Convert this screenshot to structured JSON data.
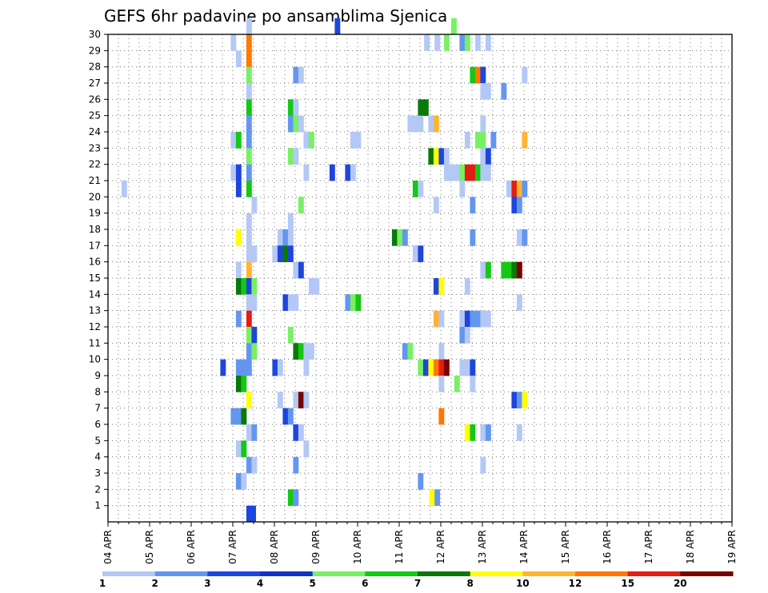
{
  "chart_data": {
    "type": "heatmap",
    "title": "GEFS 6hr padavine po ansamblima Sjenica",
    "x_ticks": [
      "04 APR",
      "05 APR",
      "06 APR",
      "07 APR",
      "08 APR",
      "09 APR",
      "10 APR",
      "11 APR",
      "12 APR",
      "13 APR",
      "14 APR",
      "15 APR",
      "16 APR",
      "17 APR",
      "18 APR",
      "19 APR"
    ],
    "y_ticks": [
      "1",
      "2",
      "3",
      "4",
      "5",
      "6",
      "7",
      "8",
      "9",
      "10",
      "11",
      "12",
      "13",
      "14",
      "15",
      "16",
      "17",
      "18",
      "19",
      "20",
      "21",
      "22",
      "23",
      "24",
      "25",
      "26",
      "27",
      "28",
      "29",
      "30"
    ],
    "x_range": [
      0,
      60
    ],
    "y_range": [
      0,
      30
    ],
    "grid": true,
    "legend": "bottom",
    "levels": [
      "1",
      "2",
      "3",
      "4",
      "5",
      "6",
      "7",
      "8",
      "10",
      "12",
      "15",
      "20"
    ],
    "level_colors": [
      "#b4c8f5",
      "#6496f0",
      "#1e46dc",
      "#1432c8",
      "#78f064",
      "#14c814",
      "#0a780a",
      "#ffff00",
      "#ffb432",
      "#ff7800",
      "#e11e14",
      "#780000"
    ],
    "cells": [
      [
        13.3,
        30,
        1
      ],
      [
        13.3,
        0,
        3
      ],
      [
        13.7,
        0,
        3
      ],
      [
        21.8,
        30,
        3
      ],
      [
        33,
        30,
        5
      ],
      [
        11.8,
        29,
        1
      ],
      [
        13.3,
        29,
        10
      ],
      [
        30.4,
        29,
        1
      ],
      [
        31.4,
        29,
        1
      ],
      [
        32.3,
        29,
        5
      ],
      [
        33.8,
        29,
        2
      ],
      [
        34.3,
        29,
        5
      ],
      [
        35.3,
        29,
        1
      ],
      [
        36.3,
        29,
        1
      ],
      [
        12.3,
        28,
        1
      ],
      [
        13.3,
        28,
        10
      ],
      [
        13.3,
        27,
        5
      ],
      [
        17.8,
        27,
        2
      ],
      [
        18.3,
        27,
        1
      ],
      [
        34.8,
        27,
        6
      ],
      [
        35.3,
        27,
        10
      ],
      [
        35.8,
        27,
        3
      ],
      [
        39.8,
        27,
        1
      ],
      [
        13.3,
        26,
        1
      ],
      [
        35.8,
        26,
        1
      ],
      [
        36.3,
        26,
        1
      ],
      [
        37.8,
        26,
        2
      ],
      [
        13.3,
        25,
        6
      ],
      [
        17.3,
        25,
        6
      ],
      [
        17.8,
        25,
        1
      ],
      [
        29.8,
        25,
        7
      ],
      [
        30.3,
        25,
        7
      ],
      [
        13.3,
        24,
        2
      ],
      [
        17.3,
        24,
        2
      ],
      [
        17.8,
        24,
        5
      ],
      [
        18.3,
        24,
        1
      ],
      [
        28.8,
        24,
        1
      ],
      [
        29.3,
        24,
        1
      ],
      [
        29.8,
        24,
        1
      ],
      [
        30.8,
        24,
        1
      ],
      [
        31.3,
        24,
        9
      ],
      [
        35.8,
        24,
        1
      ],
      [
        11.8,
        23,
        1
      ],
      [
        12.3,
        23,
        6
      ],
      [
        13.3,
        23,
        2
      ],
      [
        18.8,
        23,
        1
      ],
      [
        19.3,
        23,
        5
      ],
      [
        23.3,
        23,
        1
      ],
      [
        23.8,
        23,
        1
      ],
      [
        34.3,
        23,
        1
      ],
      [
        35.3,
        23,
        5
      ],
      [
        35.8,
        23,
        5
      ],
      [
        36.8,
        23,
        2
      ],
      [
        39.8,
        23,
        9
      ],
      [
        13.3,
        22,
        5
      ],
      [
        17.3,
        22,
        5
      ],
      [
        17.8,
        22,
        1
      ],
      [
        30.8,
        22,
        7
      ],
      [
        31.3,
        22,
        8
      ],
      [
        31.8,
        22,
        3
      ],
      [
        32.3,
        22,
        1
      ],
      [
        35.8,
        22,
        1
      ],
      [
        36.3,
        22,
        3
      ],
      [
        11.8,
        21,
        1
      ],
      [
        12.3,
        21,
        3
      ],
      [
        13.3,
        21,
        2
      ],
      [
        18.8,
        21,
        1
      ],
      [
        21.3,
        21,
        3
      ],
      [
        22.8,
        21,
        3
      ],
      [
        23.3,
        21,
        1
      ],
      [
        32.3,
        21,
        1
      ],
      [
        32.8,
        21,
        1
      ],
      [
        33.3,
        21,
        1
      ],
      [
        33.8,
        21,
        5
      ],
      [
        34.3,
        21,
        11
      ],
      [
        34.8,
        21,
        11
      ],
      [
        35.3,
        21,
        6
      ],
      [
        35.8,
        21,
        1
      ],
      [
        36.3,
        21,
        1
      ],
      [
        1.3,
        20,
        1
      ],
      [
        12.3,
        20,
        3
      ],
      [
        13.3,
        20,
        6
      ],
      [
        29.3,
        20,
        6
      ],
      [
        29.8,
        20,
        1
      ],
      [
        33.8,
        20,
        1
      ],
      [
        38.3,
        20,
        1
      ],
      [
        38.8,
        20,
        11
      ],
      [
        39.3,
        20,
        9
      ],
      [
        39.8,
        20,
        2
      ],
      [
        13.8,
        19,
        1
      ],
      [
        18.3,
        19,
        5
      ],
      [
        31.3,
        19,
        1
      ],
      [
        34.8,
        19,
        2
      ],
      [
        38.8,
        19,
        3
      ],
      [
        39.3,
        19,
        2
      ],
      [
        13.3,
        18,
        1
      ],
      [
        17.3,
        18,
        1
      ],
      [
        12.3,
        17,
        8
      ],
      [
        13.3,
        17,
        1
      ],
      [
        16.3,
        17,
        1
      ],
      [
        16.8,
        17,
        2
      ],
      [
        17.3,
        17,
        1
      ],
      [
        27.3,
        17,
        7
      ],
      [
        27.8,
        17,
        5
      ],
      [
        28.3,
        17,
        2
      ],
      [
        34.8,
        17,
        2
      ],
      [
        39.3,
        17,
        1
      ],
      [
        39.8,
        17,
        2
      ],
      [
        13.3,
        16,
        1
      ],
      [
        13.8,
        16,
        1
      ],
      [
        15.8,
        16,
        1
      ],
      [
        16.3,
        16,
        3
      ],
      [
        16.8,
        16,
        7
      ],
      [
        17.3,
        16,
        3
      ],
      [
        29.3,
        16,
        1
      ],
      [
        29.8,
        16,
        3
      ],
      [
        12.3,
        15,
        1
      ],
      [
        13.3,
        15,
        9
      ],
      [
        17.8,
        15,
        1
      ],
      [
        18.3,
        15,
        3
      ],
      [
        35.8,
        15,
        1
      ],
      [
        36.3,
        15,
        6
      ],
      [
        37.8,
        15,
        6
      ],
      [
        38.3,
        15,
        6
      ],
      [
        38.8,
        15,
        7
      ],
      [
        39.3,
        15,
        12
      ],
      [
        12.3,
        14,
        7
      ],
      [
        12.8,
        14,
        6
      ],
      [
        13.3,
        14,
        3
      ],
      [
        13.8,
        14,
        5
      ],
      [
        19.3,
        14,
        1
      ],
      [
        19.8,
        14,
        1
      ],
      [
        31.3,
        14,
        3
      ],
      [
        31.8,
        14,
        8
      ],
      [
        34.3,
        14,
        1
      ],
      [
        13.3,
        13,
        1
      ],
      [
        13.8,
        13,
        1
      ],
      [
        16.8,
        13,
        3
      ],
      [
        17.3,
        13,
        1
      ],
      [
        17.8,
        13,
        1
      ],
      [
        22.8,
        13,
        2
      ],
      [
        23.3,
        13,
        5
      ],
      [
        23.8,
        13,
        6
      ],
      [
        39.3,
        13,
        1
      ],
      [
        12.3,
        12,
        2
      ],
      [
        13.3,
        12,
        11
      ],
      [
        31.3,
        12,
        9
      ],
      [
        31.8,
        12,
        1
      ],
      [
        33.8,
        12,
        1
      ],
      [
        34.3,
        12,
        3
      ],
      [
        34.8,
        12,
        2
      ],
      [
        35.3,
        12,
        2
      ],
      [
        35.8,
        12,
        1
      ],
      [
        36.3,
        12,
        1
      ],
      [
        13.3,
        11,
        5
      ],
      [
        13.8,
        11,
        3
      ],
      [
        17.3,
        11,
        5
      ],
      [
        33.8,
        11,
        2
      ],
      [
        34.3,
        11,
        1
      ],
      [
        13.3,
        10,
        2
      ],
      [
        13.8,
        10,
        5
      ],
      [
        17.8,
        10,
        7
      ],
      [
        18.3,
        10,
        6
      ],
      [
        18.8,
        10,
        1
      ],
      [
        19.3,
        10,
        1
      ],
      [
        28.3,
        10,
        2
      ],
      [
        28.8,
        10,
        5
      ],
      [
        31.8,
        10,
        1
      ],
      [
        10.8,
        9,
        3
      ],
      [
        12.3,
        9,
        2
      ],
      [
        12.8,
        9,
        2
      ],
      [
        13.3,
        9,
        2
      ],
      [
        15.8,
        9,
        3
      ],
      [
        16.3,
        9,
        1
      ],
      [
        18.8,
        9,
        1
      ],
      [
        29.8,
        9,
        5
      ],
      [
        30.3,
        9,
        3
      ],
      [
        30.8,
        9,
        8
      ],
      [
        31.3,
        9,
        10
      ],
      [
        31.8,
        9,
        11
      ],
      [
        32.3,
        9,
        12
      ],
      [
        33.8,
        9,
        1
      ],
      [
        34.3,
        9,
        1
      ],
      [
        34.8,
        9,
        3
      ],
      [
        12.3,
        8,
        7
      ],
      [
        12.8,
        8,
        6
      ],
      [
        31.8,
        8,
        1
      ],
      [
        33.3,
        8,
        5
      ],
      [
        34.8,
        8,
        1
      ],
      [
        13.3,
        7,
        8
      ],
      [
        16.3,
        7,
        1
      ],
      [
        17.8,
        7,
        1
      ],
      [
        18.3,
        7,
        12
      ],
      [
        18.8,
        7,
        1
      ],
      [
        38.8,
        7,
        3
      ],
      [
        39.3,
        7,
        2
      ],
      [
        39.8,
        7,
        8
      ],
      [
        11.8,
        6,
        2
      ],
      [
        12.3,
        6,
        2
      ],
      [
        12.8,
        6,
        7
      ],
      [
        16.8,
        6,
        3
      ],
      [
        17.3,
        6,
        2
      ],
      [
        31.8,
        6,
        10
      ],
      [
        13.3,
        5,
        1
      ],
      [
        13.8,
        5,
        2
      ],
      [
        17.8,
        5,
        3
      ],
      [
        18.3,
        5,
        1
      ],
      [
        34.3,
        5,
        8
      ],
      [
        34.8,
        5,
        6
      ],
      [
        35.8,
        5,
        1
      ],
      [
        36.3,
        5,
        2
      ],
      [
        39.3,
        5,
        1
      ],
      [
        12.3,
        4,
        1
      ],
      [
        12.8,
        4,
        6
      ],
      [
        18.8,
        4,
        1
      ],
      [
        13.3,
        3,
        2
      ],
      [
        13.8,
        3,
        1
      ],
      [
        17.8,
        3,
        2
      ],
      [
        35.8,
        3,
        1
      ],
      [
        12.3,
        2,
        2
      ],
      [
        12.8,
        2,
        1
      ],
      [
        29.8,
        2,
        2
      ],
      [
        17.3,
        1,
        6
      ],
      [
        17.8,
        1,
        2
      ],
      [
        30.9,
        1,
        8
      ],
      [
        31.4,
        1,
        2
      ]
    ]
  }
}
